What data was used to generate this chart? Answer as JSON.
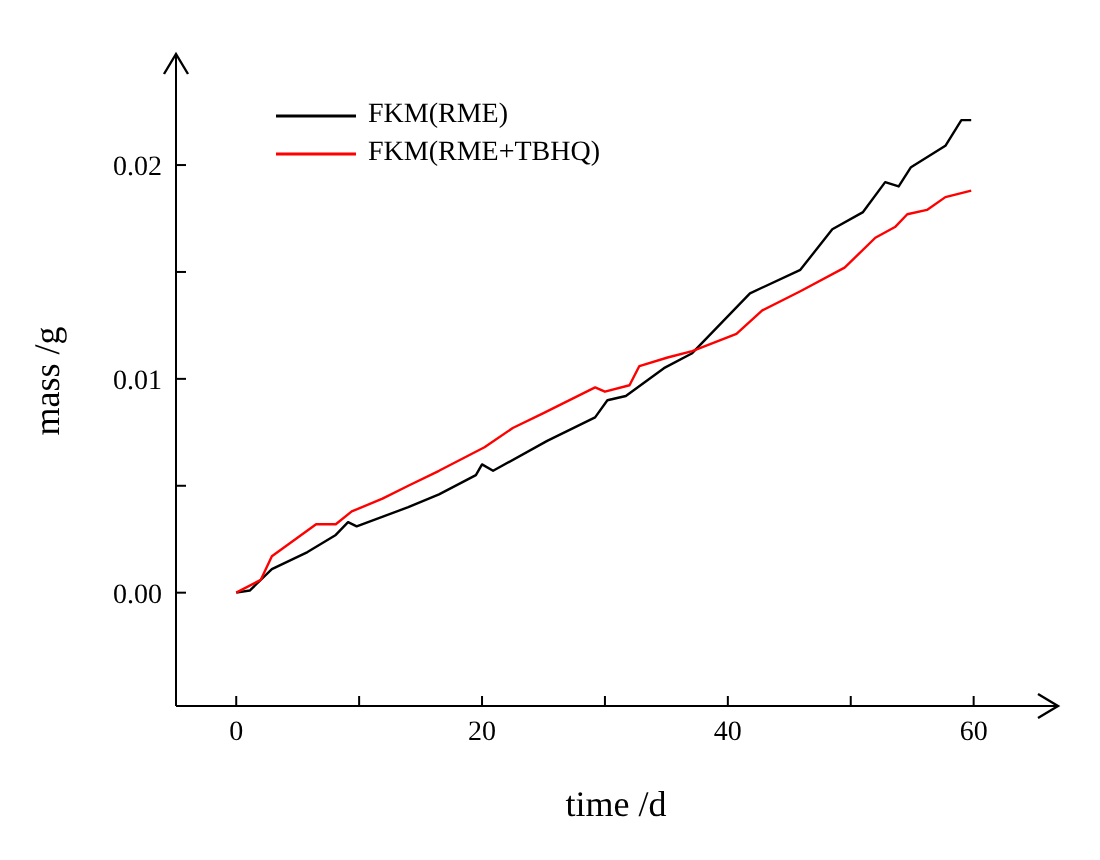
{
  "chart_data": {
    "type": "line",
    "xlabel": "time /d",
    "ylabel": "mass /g",
    "xlim": [
      -4.9,
      66.7
    ],
    "ylim": [
      -0.0053,
      0.0251
    ],
    "xticks": [
      0,
      {
        "value": 10,
        "label": null
      },
      20,
      {
        "value": 30,
        "label": null
      },
      40,
      {
        "value": 50,
        "label": null
      },
      60
    ],
    "yticks": [
      {
        "value": 0,
        "label": "0.00"
      },
      {
        "value": 0.005,
        "label": null
      },
      {
        "value": 0.01,
        "label": "0.01"
      },
      {
        "value": 0.015,
        "label": null
      },
      {
        "value": 0.02,
        "label": "0.02"
      }
    ],
    "grid": false,
    "legend": "top left",
    "marker": "none",
    "line_style": "solid",
    "series": [
      {
        "name": "FKM(RME)",
        "color": "#000000",
        "x": [
          0,
          1.1,
          2.9,
          5.8,
          8.1,
          9.1,
          9.8,
          14,
          16.5,
          19.5,
          20,
          20.9,
          25.3,
          29.2,
          30.2,
          31.7,
          34.8,
          37.1,
          41.8,
          45.9,
          48.5,
          51,
          52.8,
          53.9,
          54.9,
          57.7,
          59,
          59.8
        ],
        "values": [
          0,
          0.0001,
          0.0011,
          0.0019,
          0.0027,
          0.0033,
          0.0031,
          0.004,
          0.0046,
          0.0055,
          0.006,
          0.0057,
          0.0071,
          0.0082,
          0.009,
          0.0092,
          0.0105,
          0.0112,
          0.014,
          0.0151,
          0.017,
          0.0178,
          0.0192,
          0.019,
          0.0199,
          0.0209,
          0.0221,
          0.0221
        ]
      },
      {
        "name": "FKM(RME+TBHQ)",
        "color": "#ff0000",
        "x": [
          0,
          2,
          2.9,
          6.5,
          8.1,
          9.4,
          11.9,
          14,
          16.5,
          20.2,
          22.5,
          25,
          29.2,
          30,
          32,
          32.8,
          35.1,
          37.1,
          40.7,
          42.8,
          45.9,
          49.5,
          52,
          53.6,
          54.6,
          56.2,
          57.7,
          59.8
        ],
        "values": [
          0,
          0.0006,
          0.0017,
          0.0032,
          0.0032,
          0.0038,
          0.0044,
          0.005,
          0.0057,
          0.0068,
          0.0077,
          0.0084,
          0.0096,
          0.0094,
          0.0097,
          0.0106,
          0.011,
          0.0113,
          0.0121,
          0.0132,
          0.0141,
          0.0152,
          0.0166,
          0.0171,
          0.0177,
          0.0179,
          0.0185,
          0.0188
        ]
      }
    ]
  }
}
